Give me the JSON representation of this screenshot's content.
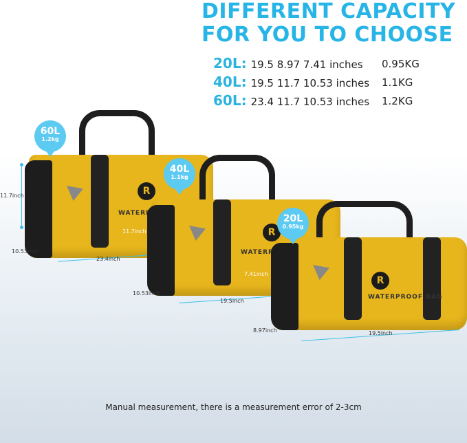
{
  "title": {
    "line1": "DIFFERENT CAPACITY",
    "line2": "FOR YOU TO CHOOSE"
  },
  "specs": [
    {
      "capacity": "20L:",
      "dims": "19.5 8.97 7.41  inches",
      "weight": "0.95KG"
    },
    {
      "capacity": "40L:",
      "dims": "19.5 11.7 10.53 inches",
      "weight": "1.1KG"
    },
    {
      "capacity": "60L:",
      "dims": "23.4 11.7 10.53 inches",
      "weight": "1.2KG"
    }
  ],
  "bags": [
    {
      "capacity": "60L",
      "weight": "1.2kg",
      "height": "11.7inch",
      "depth": "10.53inch",
      "length": "23.4inch",
      "print": "WATERPROOF BAG"
    },
    {
      "capacity": "40L",
      "weight": "1.1kg",
      "height": "11.7inch",
      "depth": "10.53inch",
      "length": "19.5inch",
      "print": "WATERPROOF BAG"
    },
    {
      "capacity": "20L",
      "weight": "0.95kg",
      "height": "7.41inch",
      "depth": "8.97inch",
      "length": "19.5inch",
      "print": "WATERPROOF BAG"
    }
  ],
  "logo_letter": "R",
  "footer": "Manual measurement, there is a measurement error of 2-3cm",
  "colors": {
    "accent": "#27b4e6",
    "bag": "#e7b51c",
    "bubble": "#5ccaf1"
  }
}
